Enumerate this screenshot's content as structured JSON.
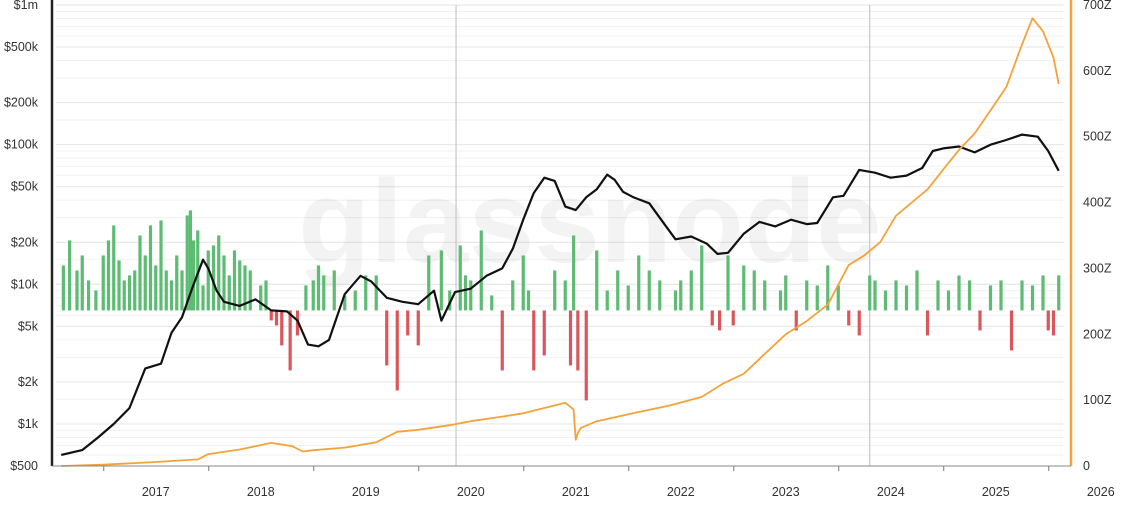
{
  "watermark": "glassnode",
  "chart_data": {
    "type": "line",
    "y_left_scale": "log",
    "y_left_ticks": [
      {
        "value": 500,
        "label": "$500"
      },
      {
        "value": 1000,
        "label": "$1k"
      },
      {
        "value": 2000,
        "label": "$2k"
      },
      {
        "value": 5000,
        "label": "$5k"
      },
      {
        "value": 10000,
        "label": "$10k"
      },
      {
        "value": 20000,
        "label": "$20k"
      },
      {
        "value": 50000,
        "label": "$50k"
      },
      {
        "value": 100000,
        "label": "$100k"
      },
      {
        "value": 200000,
        "label": "$200k"
      },
      {
        "value": 500000,
        "label": "$500k"
      },
      {
        "value": 1000000,
        "label": "$1m"
      }
    ],
    "y_right_ticks": [
      {
        "value": 0,
        "label": "0"
      },
      {
        "value": 100,
        "label": "100Z"
      },
      {
        "value": 200,
        "label": "200Z"
      },
      {
        "value": 300,
        "label": "300Z"
      },
      {
        "value": 400,
        "label": "400Z"
      },
      {
        "value": 500,
        "label": "500Z"
      },
      {
        "value": 600,
        "label": "600Z"
      },
      {
        "value": 700,
        "label": "700Z"
      }
    ],
    "x_ticks": [
      "2017",
      "2018",
      "2019",
      "2020",
      "2021",
      "2022",
      "2023",
      "2024",
      "2025",
      "2026"
    ],
    "x_range": [
      2016.55,
      2026.15
    ],
    "vertical_markers": [
      2020.36,
      2024.3
    ],
    "grid": true,
    "colors": {
      "price": "#111111",
      "cumulative": "#F2A33A",
      "positive": "#5DBB73",
      "negative": "#D9575B",
      "axis": "#555555"
    },
    "series": [
      {
        "axis": "left",
        "color": "#111111",
        "x": [
          2016.6,
          2016.8,
          2016.95,
          2017.1,
          2017.25,
          2017.4,
          2017.55,
          2017.65,
          2017.75,
          2017.85,
          2017.95,
          2018.0,
          2018.08,
          2018.15,
          2018.3,
          2018.45,
          2018.6,
          2018.75,
          2018.85,
          2018.95,
          2019.05,
          2019.15,
          2019.3,
          2019.45,
          2019.55,
          2019.7,
          2019.85,
          2020.0,
          2020.15,
          2020.22,
          2020.35,
          2020.5,
          2020.65,
          2020.8,
          2020.9,
          2021.0,
          2021.1,
          2021.2,
          2021.3,
          2021.4,
          2021.5,
          2021.6,
          2021.7,
          2021.8,
          2021.87,
          2021.95,
          2022.05,
          2022.2,
          2022.3,
          2022.45,
          2022.6,
          2022.75,
          2022.85,
          2022.95,
          2023.1,
          2023.25,
          2023.4,
          2023.55,
          2023.7,
          2023.8,
          2023.95,
          2024.05,
          2024.2,
          2024.35,
          2024.5,
          2024.65,
          2024.8,
          2024.9,
          2025.0,
          2025.15,
          2025.3,
          2025.45,
          2025.6,
          2025.75,
          2025.9,
          2026.0,
          2026.1
        ],
        "y": [
          600,
          650,
          800,
          1000,
          1300,
          2500,
          2700,
          4500,
          5800,
          9500,
          15000,
          13000,
          9000,
          7500,
          7000,
          7800,
          6500,
          6400,
          5500,
          3700,
          3600,
          4000,
          8500,
          11500,
          10500,
          8000,
          7500,
          7200,
          9000,
          5500,
          8800,
          9300,
          11500,
          13000,
          18000,
          29000,
          45000,
          58000,
          55000,
          36000,
          34000,
          42000,
          48000,
          61000,
          56000,
          46000,
          42000,
          38000,
          30000,
          21000,
          22000,
          19500,
          16500,
          16800,
          23000,
          28000,
          26000,
          29000,
          27000,
          27500,
          42000,
          43000,
          66000,
          63000,
          58000,
          60000,
          68000,
          90000,
          94000,
          97000,
          88000,
          100000,
          108000,
          118000,
          114000,
          90000,
          65000
        ]
      },
      {
        "axis": "right",
        "color": "#F2A33A",
        "x": [
          2016.6,
          2017.0,
          2017.5,
          2017.9,
          2018.0,
          2018.3,
          2018.6,
          2018.8,
          2018.9,
          2019.0,
          2019.3,
          2019.6,
          2019.8,
          2020.0,
          2020.3,
          2020.5,
          2020.8,
          2021.0,
          2021.2,
          2021.4,
          2021.48,
          2021.5,
          2021.52,
          2021.55,
          2021.7,
          2021.9,
          2022.1,
          2022.4,
          2022.7,
          2022.9,
          2023.1,
          2023.3,
          2023.5,
          2023.7,
          2023.9,
          2024.0,
          2024.1,
          2024.25,
          2024.4,
          2024.55,
          2024.7,
          2024.85,
          2025.0,
          2025.15,
          2025.3,
          2025.45,
          2025.6,
          2025.75,
          2025.85,
          2025.95,
          2026.05,
          2026.1
        ],
        "y": [
          0,
          2,
          6,
          10,
          18,
          25,
          35,
          30,
          22,
          24,
          28,
          36,
          52,
          55,
          62,
          68,
          75,
          80,
          88,
          96,
          86,
          40,
          50,
          58,
          68,
          75,
          82,
          92,
          105,
          125,
          140,
          170,
          200,
          220,
          245,
          275,
          305,
          320,
          340,
          380,
          400,
          420,
          450,
          480,
          505,
          540,
          575,
          640,
          680,
          660,
          620,
          580
        ]
      }
    ],
    "bars": {
      "x": [
        2016.62,
        2016.68,
        2016.75,
        2016.8,
        2016.86,
        2016.93,
        2017.0,
        2017.05,
        2017.1,
        2017.15,
        2017.2,
        2017.25,
        2017.3,
        2017.35,
        2017.4,
        2017.45,
        2017.5,
        2017.55,
        2017.6,
        2017.65,
        2017.7,
        2017.75,
        2017.8,
        2017.83,
        2017.86,
        2017.9,
        2017.95,
        2018.0,
        2018.05,
        2018.1,
        2018.15,
        2018.2,
        2018.25,
        2018.3,
        2018.35,
        2018.4,
        2018.5,
        2018.55,
        2018.6,
        2018.65,
        2018.7,
        2018.78,
        2018.85,
        2018.93,
        2019.0,
        2019.05,
        2019.1,
        2019.2,
        2019.3,
        2019.4,
        2019.5,
        2019.6,
        2019.7,
        2019.8,
        2019.9,
        2020.0,
        2020.1,
        2020.22,
        2020.3,
        2020.4,
        2020.45,
        2020.5,
        2020.6,
        2020.7,
        2020.8,
        2020.9,
        2021.0,
        2021.05,
        2021.1,
        2021.2,
        2021.3,
        2021.4,
        2021.45,
        2021.48,
        2021.52,
        2021.6,
        2021.7,
        2021.8,
        2021.9,
        2022.0,
        2022.1,
        2022.2,
        2022.3,
        2022.45,
        2022.5,
        2022.6,
        2022.7,
        2022.8,
        2022.87,
        2022.95,
        2023.0,
        2023.1,
        2023.2,
        2023.3,
        2023.45,
        2023.5,
        2023.6,
        2023.7,
        2023.8,
        2023.9,
        2024.0,
        2024.1,
        2024.2,
        2024.3,
        2024.35,
        2024.45,
        2024.55,
        2024.65,
        2024.75,
        2024.85,
        2024.95,
        2025.05,
        2025.15,
        2025.25,
        2025.35,
        2025.45,
        2025.55,
        2025.65,
        2025.75,
        2025.85,
        2025.95,
        2026.0,
        2026.05,
        2026.1
      ],
      "values": [
        0.45,
        0.7,
        0.4,
        0.55,
        0.3,
        0.2,
        0.55,
        0.7,
        0.85,
        0.5,
        0.3,
        0.35,
        0.4,
        0.75,
        0.55,
        0.85,
        0.45,
        0.9,
        0.4,
        0.3,
        0.55,
        0.4,
        0.95,
        1.0,
        0.7,
        0.8,
        0.25,
        0.6,
        0.65,
        0.75,
        0.55,
        0.35,
        0.6,
        0.5,
        0.45,
        0.4,
        0.25,
        0.3,
        -0.1,
        -0.15,
        -0.35,
        -0.6,
        -0.25,
        0.25,
        0.3,
        0.45,
        0.35,
        0.4,
        0.15,
        0.2,
        0.35,
        0.35,
        -0.55,
        -0.8,
        -0.25,
        -0.35,
        0.55,
        0.6,
        0.2,
        0.65,
        0.35,
        0.3,
        0.8,
        0.15,
        -0.6,
        0.3,
        0.55,
        0.2,
        -0.6,
        -0.45,
        0.4,
        0.3,
        -0.55,
        0.75,
        -0.6,
        -0.9,
        0.6,
        0.2,
        0.4,
        0.25,
        0.55,
        0.4,
        0.3,
        0.2,
        0.3,
        0.4,
        0.65,
        -0.15,
        -0.2,
        0.55,
        -0.15,
        0.45,
        0.4,
        0.3,
        0.2,
        0.35,
        -0.2,
        0.3,
        0.25,
        0.45,
        0.25,
        -0.15,
        -0.25,
        0.35,
        0.3,
        0.2,
        0.3,
        0.25,
        0.4,
        -0.25,
        0.3,
        0.2,
        0.35,
        0.3,
        -0.2,
        0.25,
        0.3,
        -0.4,
        0.3,
        0.25,
        0.35,
        -0.2,
        -0.25,
        0.35
      ]
    }
  }
}
